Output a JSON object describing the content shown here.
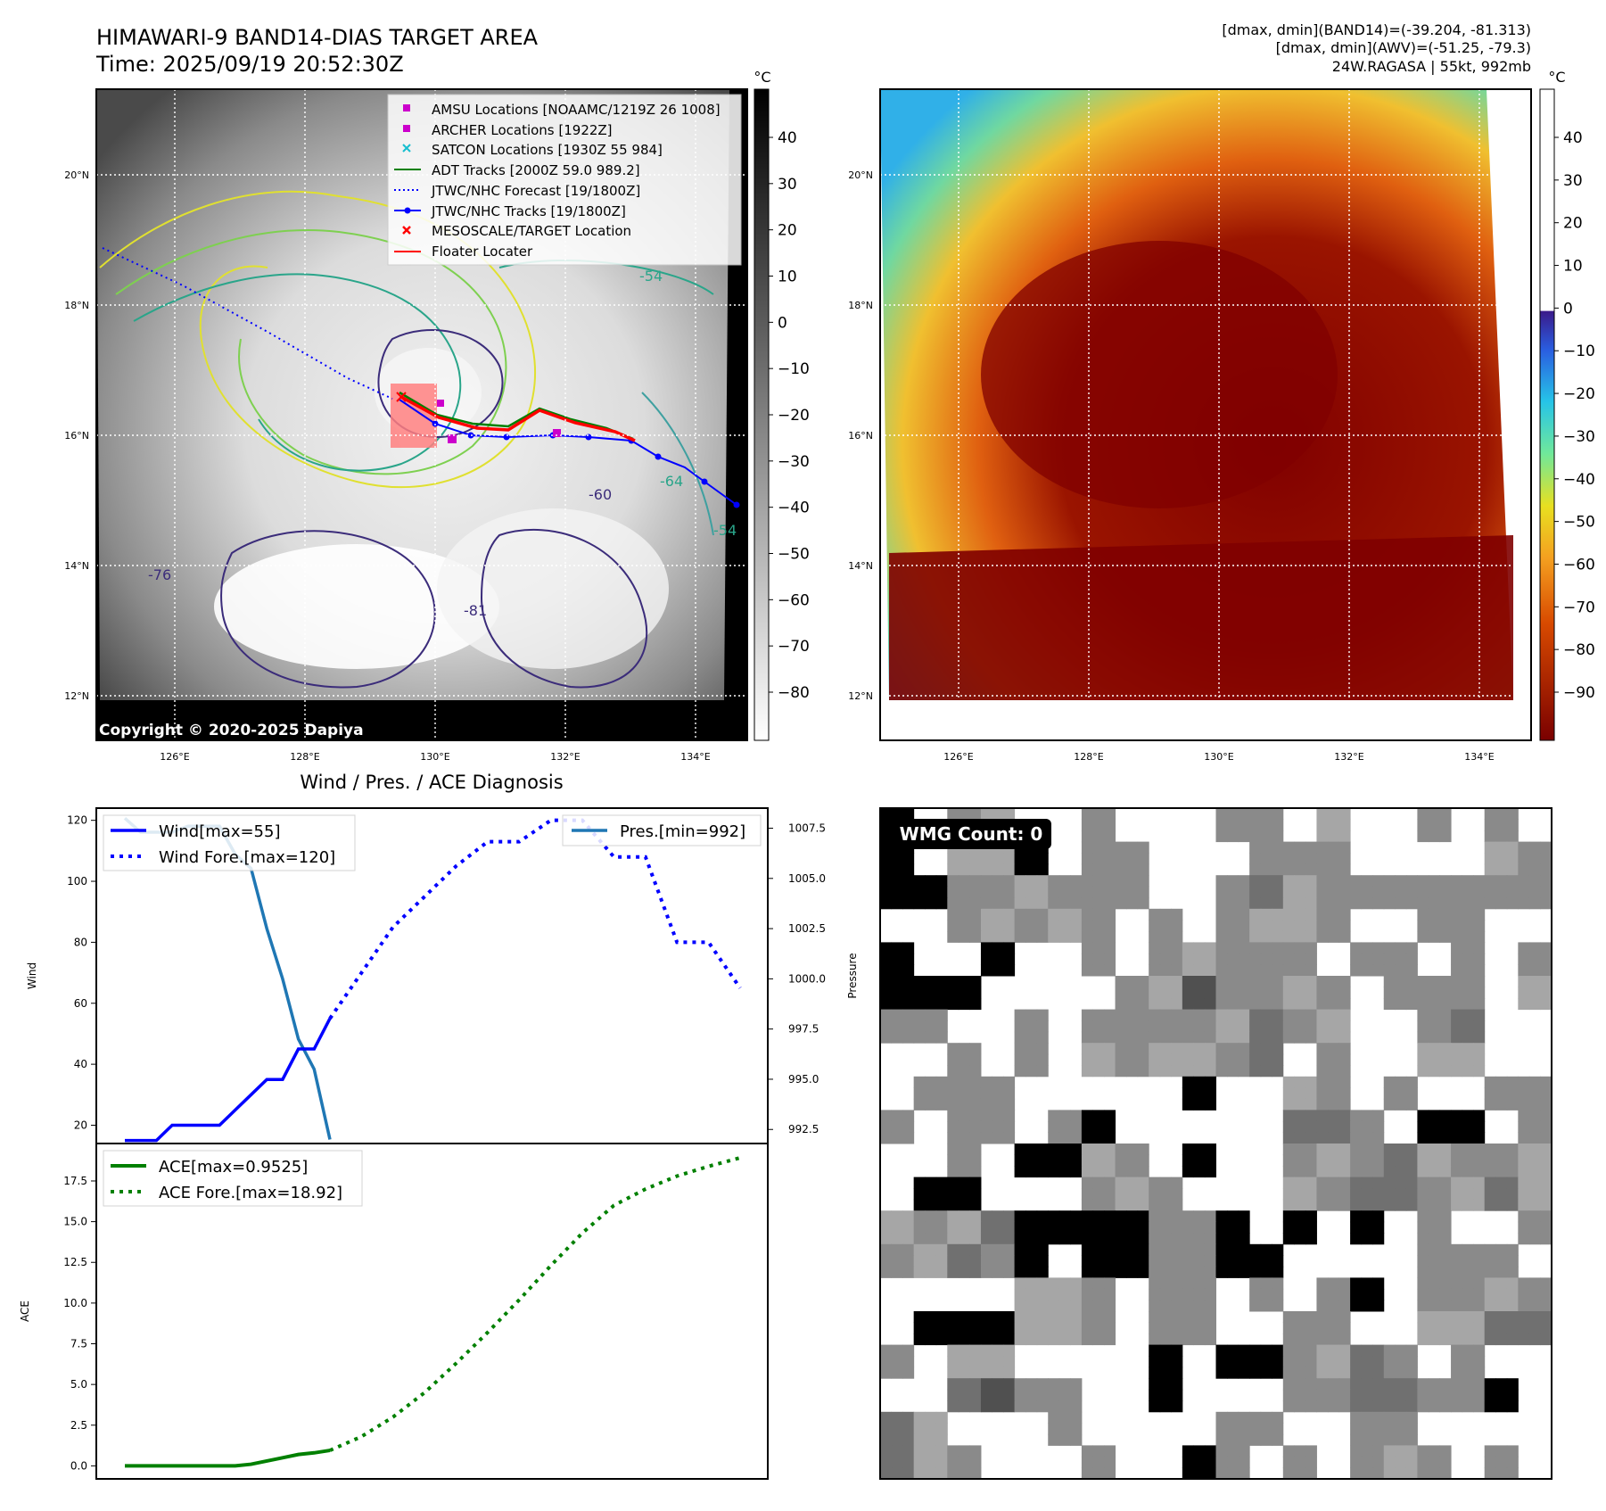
{
  "header": {
    "title_line1": "HIMAWARI-9 BAND14-DIAS TARGET AREA",
    "title_line2": "Time: 2025/09/19 20:52:30Z",
    "info_line1": "[dmax, dmin](BAND14)=(-39.204, -81.313)",
    "info_line2": "[dmax, dmin](AWV)=(-51.25, -79.3)",
    "info_line3": "24W.RAGASA | 55kt, 992mb"
  },
  "map": {
    "lat_labels": [
      "20°N",
      "18°N",
      "16°N",
      "14°N",
      "12°N"
    ],
    "lon_labels": [
      "126°E",
      "128°E",
      "130°E",
      "132°E",
      "134°E"
    ],
    "copyright": "Copyright © 2020-2025 Dapiya",
    "contour_labels": [
      "-54",
      "-60",
      "-76",
      "-81",
      "-64",
      "-54"
    ],
    "legend": [
      {
        "label": "AMSU Locations [NOAAMC/1219Z 26 1008]",
        "color": "#cc00cc",
        "marker": "square"
      },
      {
        "label": "ARCHER Locations [1922Z]",
        "color": "#cc00cc",
        "marker": "square"
      },
      {
        "label": "SATCON Locations [1930Z 55 984]",
        "color": "#17becf",
        "marker": "x"
      },
      {
        "label": "ADT Tracks [2000Z 59.0 989.2]",
        "color": "#008000",
        "marker": "line"
      },
      {
        "label": "JTWC/NHC Forecast [19/1800Z]",
        "color": "#0000ff",
        "marker": "dotted"
      },
      {
        "label": "JTWC/NHC Tracks [19/1800Z]",
        "color": "#0000ff",
        "marker": "line-dot"
      },
      {
        "label": "MESOSCALE/TARGET Location",
        "color": "#ff0000",
        "marker": "x"
      },
      {
        "label": "Floater Locater",
        "color": "#ff0000",
        "marker": "line"
      }
    ],
    "colorbar_left": {
      "unit": "°C",
      "ticks": [
        "40",
        "30",
        "20",
        "10",
        "0",
        "−10",
        "−20",
        "−30",
        "−40",
        "−50",
        "−60",
        "−70",
        "−80"
      ]
    },
    "colorbar_right": {
      "unit": "°C",
      "ticks": [
        "40",
        "30",
        "20",
        "10",
        "0",
        "−10",
        "−20",
        "−30",
        "−40",
        "−50",
        "−60",
        "−70",
        "−80",
        "−90"
      ]
    }
  },
  "colors": {
    "jtwc": "#0000ff",
    "adt": "#008000",
    "floater": "#ff0000",
    "amsu": "#cc00cc",
    "wind_line": "#1f77b4",
    "ace": "#008000"
  },
  "chart_data": [
    {
      "type": "line",
      "title": "Wind / Pres. / ACE Diagnosis",
      "ylabel": "Wind",
      "ylabel_right": "Pressure",
      "ylim": [
        14,
        124
      ],
      "ylim_right": [
        991.8,
        1008.5
      ],
      "yticks": [
        "120",
        "100",
        "80",
        "60",
        "40",
        "20"
      ],
      "yticks_right": [
        "1007.5",
        "1005.0",
        "1002.5",
        "1000.0",
        "997.5",
        "995.0",
        "992.5"
      ],
      "legend_left": [
        "Wind[max=55]",
        "Wind Fore.[max=120]"
      ],
      "legend_right": [
        "Pres.[min=992]"
      ],
      "series": [
        {
          "name": "Wind",
          "values": [
            15,
            15,
            15,
            20,
            20,
            20,
            20,
            25,
            30,
            35,
            35,
            45,
            45,
            55
          ],
          "x": [
            0,
            1,
            2,
            3,
            4,
            5,
            6,
            7,
            8,
            9,
            10,
            11,
            12,
            13
          ]
        },
        {
          "name": "Wind Fore.",
          "values": [
            55,
            70,
            85,
            95,
            105,
            113,
            113,
            120,
            120,
            108,
            108,
            80,
            80,
            65
          ],
          "x": [
            13,
            15,
            17,
            19,
            21,
            23,
            25,
            27,
            29,
            31,
            33,
            35,
            37,
            39
          ]
        },
        {
          "name": "Pres.",
          "values": [
            1008,
            1007.3,
            1007.3,
            1007.3,
            1007.6,
            1007.6,
            1007.6,
            1006.2,
            1005.5,
            1002.5,
            1000,
            997,
            995.5,
            992
          ],
          "x": [
            0,
            1,
            2,
            3,
            4,
            5,
            6,
            7,
            8,
            9,
            10,
            11,
            12,
            13
          ]
        }
      ]
    },
    {
      "type": "line",
      "ylabel": "ACE",
      "ylim": [
        -0.8,
        19.8
      ],
      "yticks": [
        "17.5",
        "15.0",
        "12.5",
        "10.0",
        "7.5",
        "5.0",
        "2.5",
        "0.0"
      ],
      "legend": [
        "ACE[max=0.9525]",
        "ACE Fore.[max=18.92]"
      ],
      "series": [
        {
          "name": "ACE",
          "values": [
            0,
            0,
            0,
            0,
            0,
            0,
            0,
            0,
            0.1,
            0.3,
            0.5,
            0.7,
            0.8,
            0.95
          ],
          "x": [
            0,
            1,
            2,
            3,
            4,
            5,
            6,
            7,
            8,
            9,
            10,
            11,
            12,
            13
          ]
        },
        {
          "name": "ACE Fore.",
          "values": [
            0.95,
            1.8,
            3.0,
            4.5,
            6.3,
            8.2,
            10.2,
            12.3,
            14.3,
            16.0,
            17.0,
            17.8,
            18.4,
            18.92
          ],
          "x": [
            13,
            15,
            17,
            19,
            21,
            23,
            25,
            27,
            29,
            31,
            33,
            35,
            37,
            39
          ]
        }
      ]
    }
  ],
  "wmg": {
    "label": "WMG Count: 0"
  }
}
